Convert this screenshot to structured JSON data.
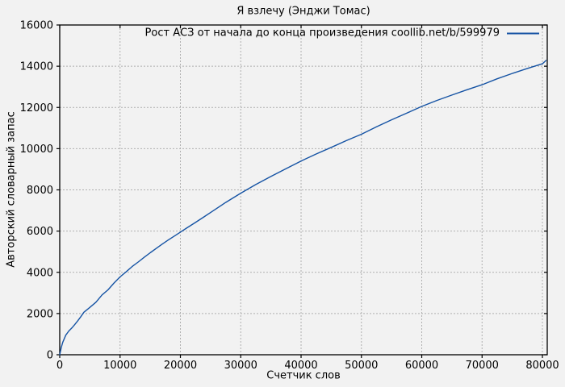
{
  "title": "Я взлечу (Энджи Томас)",
  "colors": {
    "background": "#f2f2f2",
    "line": "#1553a4",
    "grid": "#b0b0b0",
    "border": "#000000",
    "text": "#000000"
  },
  "chart_data": {
    "type": "line",
    "title": "Я взлечу (Энджи Томас)",
    "xlabel": "Счетчик слов",
    "ylabel": "Авторский словарный запас",
    "xlim": [
      0,
      80800
    ],
    "ylim": [
      0,
      16000
    ],
    "x_ticks": [
      0,
      10000,
      20000,
      30000,
      40000,
      50000,
      60000,
      70000,
      80000
    ],
    "y_ticks": [
      0,
      2000,
      4000,
      6000,
      8000,
      10000,
      12000,
      14000,
      16000
    ],
    "grid": true,
    "legend_position": "top-right-inside",
    "series": [
      {
        "name": "Рост АСЗ от начала до конца произведения coollib.net/b/599979",
        "color": "#1553a4",
        "points": [
          [
            0,
            0
          ],
          [
            250,
            350
          ],
          [
            500,
            600
          ],
          [
            1000,
            950
          ],
          [
            1500,
            1150
          ],
          [
            2000,
            1300
          ],
          [
            2500,
            1470
          ],
          [
            3000,
            1650
          ],
          [
            3500,
            1850
          ],
          [
            4000,
            2060
          ],
          [
            4500,
            2180
          ],
          [
            5000,
            2300
          ],
          [
            6000,
            2550
          ],
          [
            7000,
            2900
          ],
          [
            8000,
            3150
          ],
          [
            9000,
            3480
          ],
          [
            10000,
            3780
          ],
          [
            11000,
            4020
          ],
          [
            12000,
            4280
          ],
          [
            13000,
            4500
          ],
          [
            14000,
            4730
          ],
          [
            15000,
            4950
          ],
          [
            16000,
            5160
          ],
          [
            17000,
            5370
          ],
          [
            18000,
            5570
          ],
          [
            19000,
            5760
          ],
          [
            20000,
            5950
          ],
          [
            21000,
            6140
          ],
          [
            22500,
            6420
          ],
          [
            25000,
            6900
          ],
          [
            27500,
            7390
          ],
          [
            30000,
            7840
          ],
          [
            32500,
            8260
          ],
          [
            35000,
            8650
          ],
          [
            37500,
            9030
          ],
          [
            40000,
            9400
          ],
          [
            42500,
            9740
          ],
          [
            45000,
            10060
          ],
          [
            47500,
            10390
          ],
          [
            50000,
            10700
          ],
          [
            52500,
            11060
          ],
          [
            55000,
            11400
          ],
          [
            57500,
            11720
          ],
          [
            60000,
            12050
          ],
          [
            62500,
            12340
          ],
          [
            65000,
            12600
          ],
          [
            67500,
            12860
          ],
          [
            70000,
            13100
          ],
          [
            72500,
            13390
          ],
          [
            75000,
            13650
          ],
          [
            77500,
            13890
          ],
          [
            80000,
            14120
          ],
          [
            80600,
            14280
          ]
        ]
      }
    ]
  }
}
